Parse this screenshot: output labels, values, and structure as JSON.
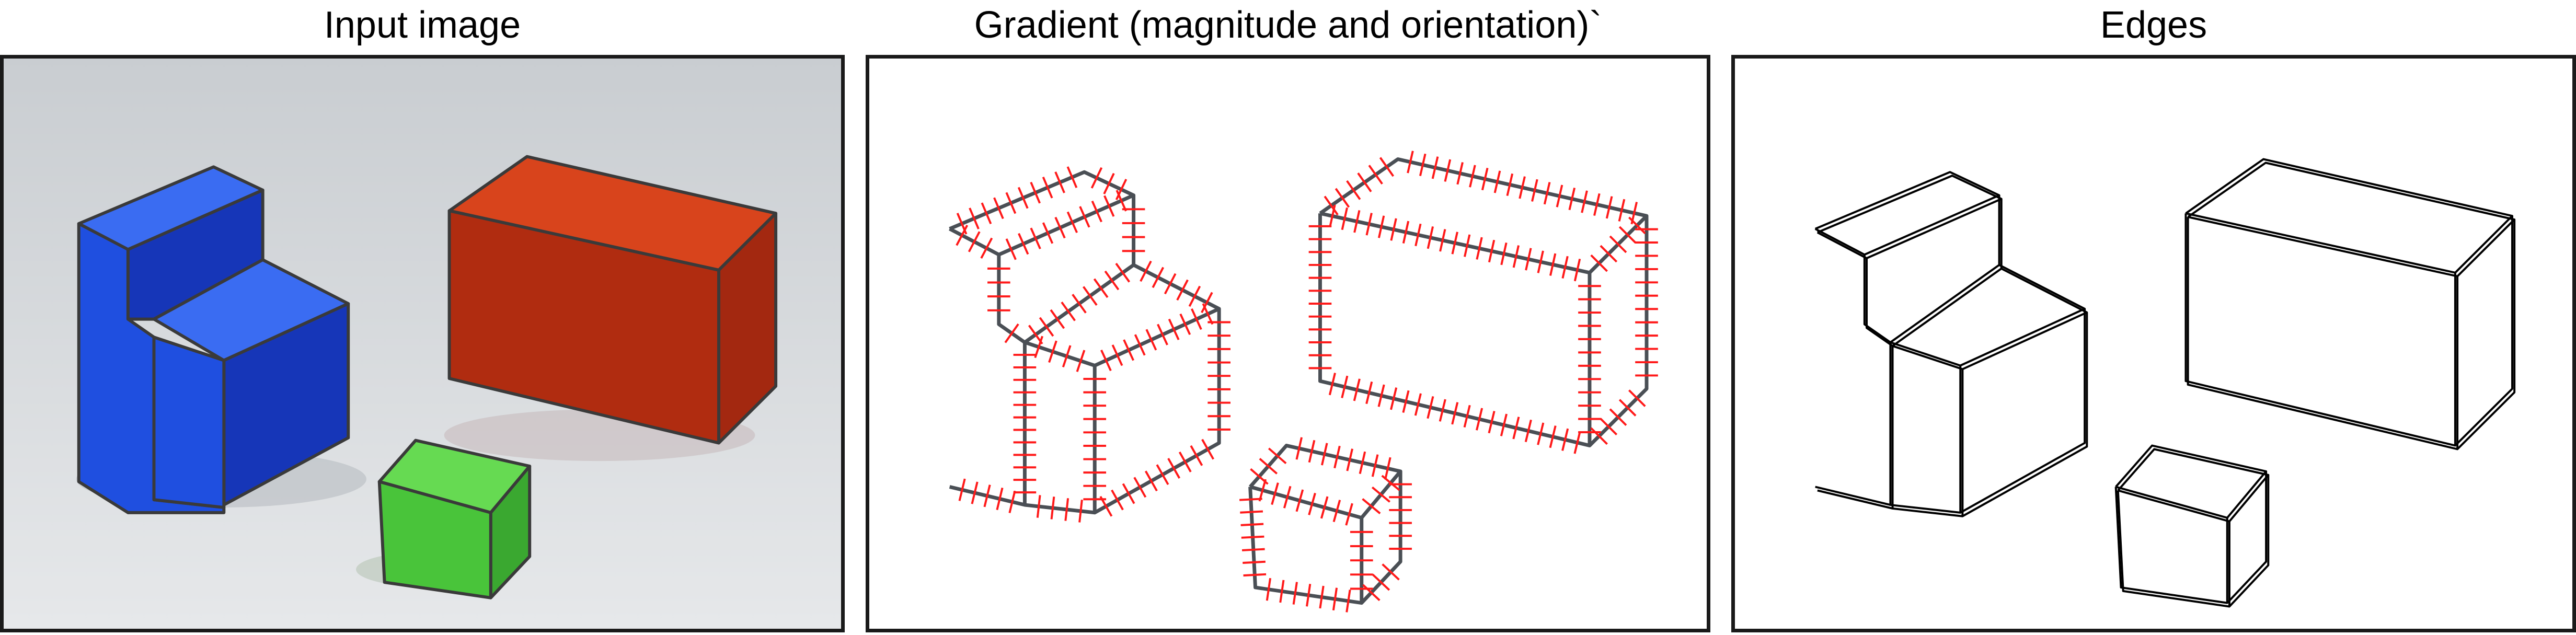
{
  "panels": [
    {
      "title": "Input image"
    },
    {
      "title": "Gradient (magnitude and orientation)`"
    },
    {
      "title": "Edges"
    }
  ],
  "colors": {
    "stair_front": "#1f4fe0",
    "stair_top": "#3a6cf2",
    "stair_side": "#1636b8",
    "box_front": "#b02c10",
    "box_top": "#d8441c",
    "box_side": "#a32810",
    "cube_front": "#49c43a",
    "cube_top": "#66da52",
    "cube_side": "#3aa830",
    "gradient_arrow": "#ff1a1a",
    "edge_line": "#000000",
    "outline": "#333333"
  }
}
